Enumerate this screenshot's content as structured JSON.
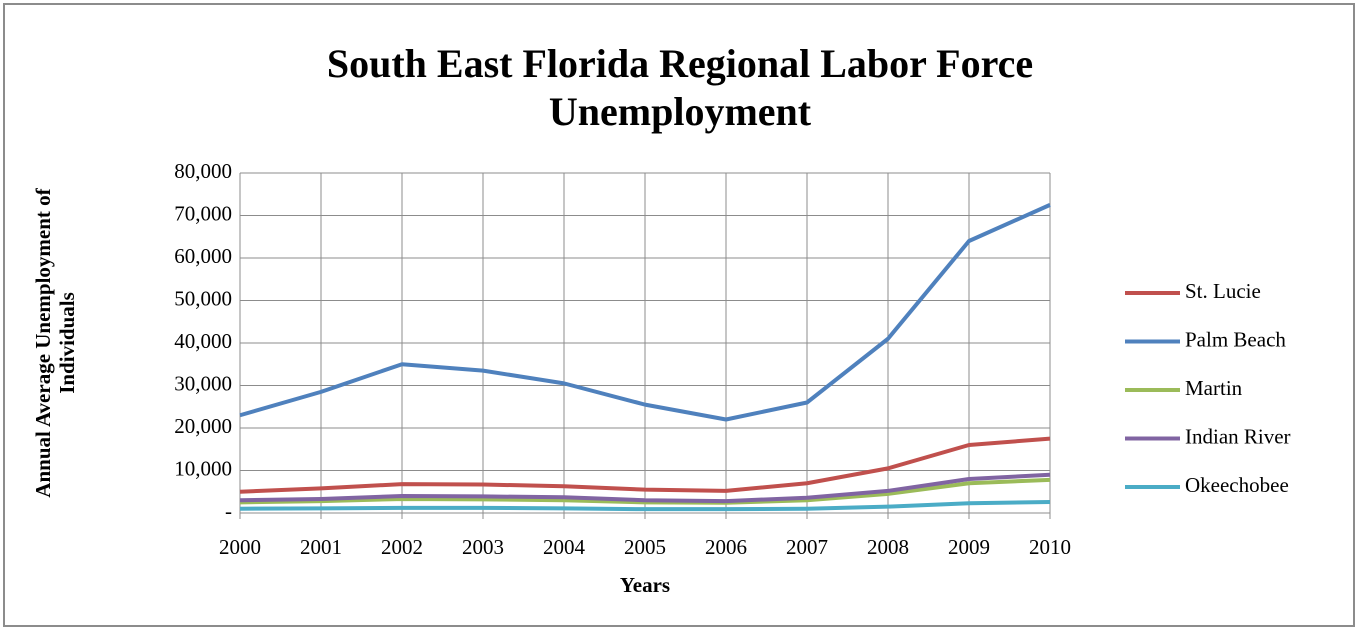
{
  "chart_data": {
    "type": "line",
    "title": "South East Florida Regional Labor Force Unemployment",
    "x_label": "Years",
    "y_label": "Annual Average Unemployment of Individuals",
    "x": [
      2000,
      2001,
      2002,
      2003,
      2004,
      2005,
      2006,
      2007,
      2008,
      2009,
      2010
    ],
    "xlim": [
      2000,
      2010
    ],
    "xticks": [
      2000,
      2001,
      2002,
      2003,
      2004,
      2005,
      2006,
      2007,
      2008,
      2009,
      2010
    ],
    "ylim": [
      0,
      80000
    ],
    "yticks": [
      {
        "value": 0,
        "label": "-"
      },
      {
        "value": 10000,
        "label": "10,000"
      },
      {
        "value": 20000,
        "label": "20,000"
      },
      {
        "value": 30000,
        "label": "30,000"
      },
      {
        "value": 40000,
        "label": "40,000"
      },
      {
        "value": 50000,
        "label": "50,000"
      },
      {
        "value": 60000,
        "label": "60,000"
      },
      {
        "value": 70000,
        "label": "70,000"
      },
      {
        "value": 80000,
        "label": "80,000"
      }
    ],
    "grid": true,
    "legend": "right",
    "series": [
      {
        "name": "St. Lucie",
        "color": "#c0504d",
        "values": [
          5000,
          5800,
          6800,
          6700,
          6300,
          5500,
          5200,
          7000,
          10500,
          16000,
          17500
        ]
      },
      {
        "name": "Palm Beach",
        "color": "#4f81bd",
        "values": [
          23000,
          28500,
          35000,
          33500,
          30500,
          25500,
          22000,
          26000,
          41000,
          64000,
          72500
        ]
      },
      {
        "name": "Martin",
        "color": "#9bbb59",
        "values": [
          2500,
          2800,
          3300,
          3200,
          3000,
          2500,
          2400,
          3000,
          4500,
          7000,
          7800
        ]
      },
      {
        "name": "Indian River",
        "color": "#8064a2",
        "values": [
          3000,
          3300,
          4000,
          3900,
          3700,
          3000,
          2800,
          3600,
          5200,
          8000,
          9000
        ]
      },
      {
        "name": "Okeechobee",
        "color": "#4bacc6",
        "values": [
          1000,
          1100,
          1200,
          1200,
          1100,
          900,
          900,
          1000,
          1500,
          2300,
          2600
        ]
      }
    ]
  }
}
